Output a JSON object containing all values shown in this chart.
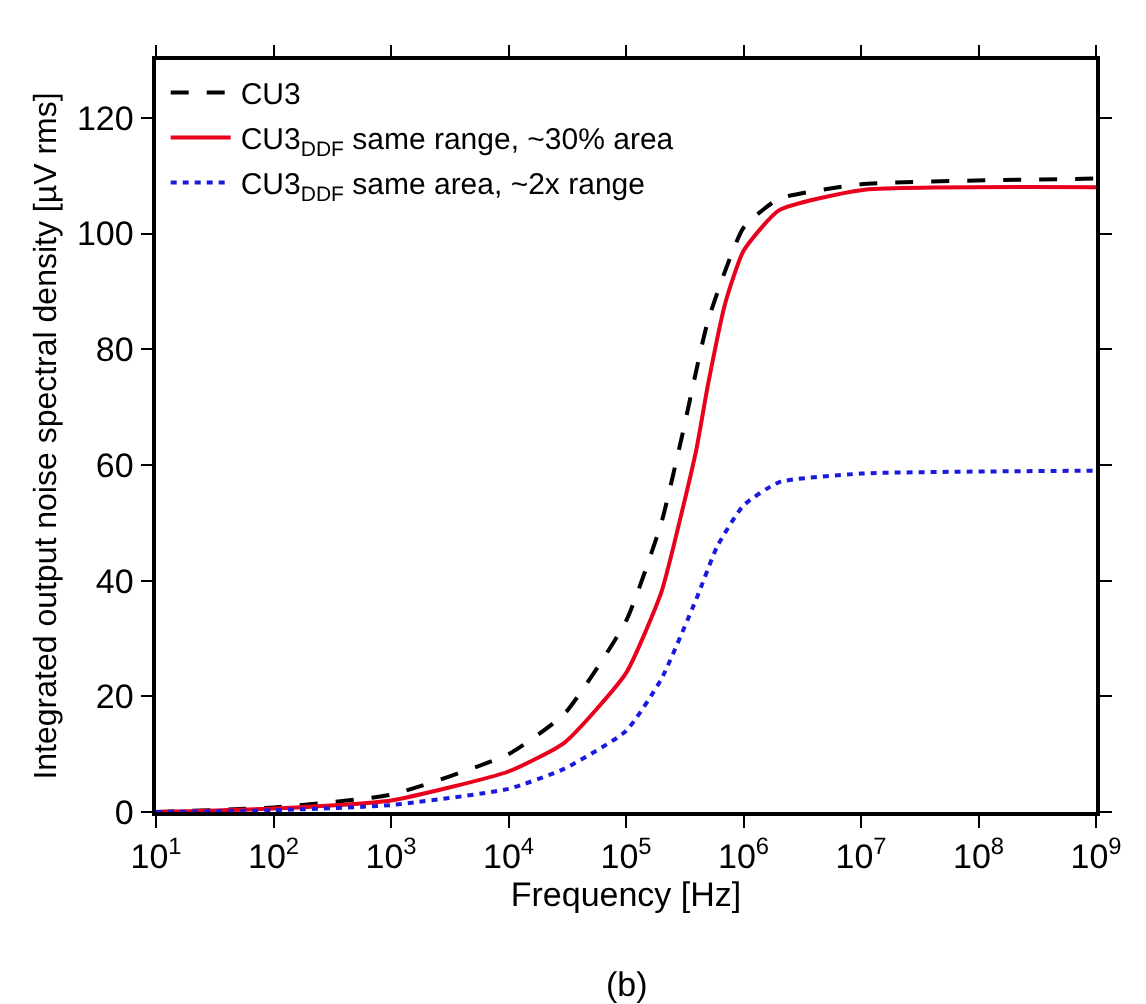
{
  "chart_data": {
    "type": "line",
    "xlabel": "Frequency [Hz]",
    "ylabel": "Integrated output noise spectral density [µV rms]",
    "log": "x",
    "xlim": [
      10,
      1000000000
    ],
    "ylim": [
      0,
      130
    ],
    "xticks": [
      {
        "value": 10,
        "label": "10$^{1}$"
      },
      {
        "value": 100,
        "label": "10$^{2}$"
      },
      {
        "value": 1000,
        "label": "10$^{3}$"
      },
      {
        "value": 10000,
        "label": "10$^{4}$"
      },
      {
        "value": 100000,
        "label": "10$^{5}$"
      },
      {
        "value": 1000000,
        "label": "10$^{6}$"
      },
      {
        "value": 10000000,
        "label": "10$^{7}$"
      },
      {
        "value": 100000000,
        "label": "10$^{8}$"
      },
      {
        "value": 1000000000,
        "label": "10$^{9}$"
      }
    ],
    "yticks": [
      0,
      20,
      40,
      60,
      80,
      100,
      120
    ],
    "legend": "top left",
    "annotations": [
      "(b)"
    ],
    "series": [
      {
        "name": "CU3",
        "color": "#000000",
        "line_style": "dashed",
        "x": [
          10,
          100,
          1000,
          10000,
          30000,
          100000,
          200000,
          300000,
          500000,
          1000000,
          2000000,
          10000000,
          1000000000
        ],
        "values": [
          0,
          0.8,
          3,
          10,
          17,
          33,
          50,
          65,
          85,
          101,
          106,
          108.5,
          109.5
        ]
      },
      {
        "name": "CU3$_{DDF}$ same range, ~30% area",
        "color": "#e8001c",
        "line_style": "solid",
        "x": [
          10,
          100,
          1000,
          10000,
          30000,
          100000,
          200000,
          300000,
          400000,
          500000,
          700000,
          1000000,
          2000000,
          10000000,
          1000000000
        ],
        "values": [
          0,
          0.6,
          2,
          7,
          12,
          24,
          38,
          52,
          63,
          74,
          88,
          97,
          104,
          107.5,
          108
        ]
      },
      {
        "name": "CU3$_{DDF}$ same area, ~2x range",
        "color": "#1a1adf",
        "line_style": "dotted",
        "x": [
          10,
          100,
          1000,
          10000,
          30000,
          100000,
          200000,
          400000,
          600000,
          1000000,
          2000000,
          10000000,
          1000000000
        ],
        "values": [
          0,
          0.3,
          1.2,
          4,
          7.5,
          14,
          23,
          37,
          46,
          53,
          57,
          58.5,
          59
        ]
      }
    ]
  }
}
